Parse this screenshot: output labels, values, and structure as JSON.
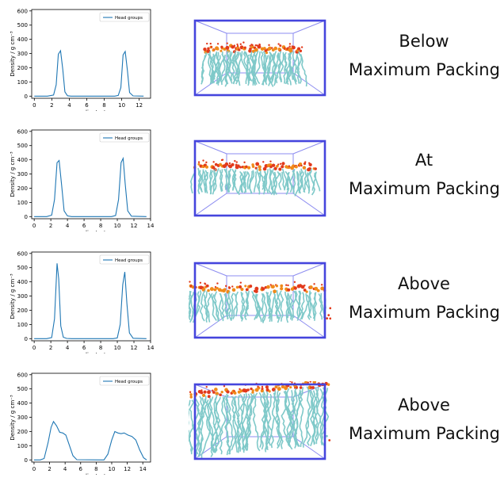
{
  "chart_data": [
    {
      "type": "line",
      "xlabel": "z-coordinate / nm",
      "ylabel": "Density / g cm⁻³",
      "xlim": [
        -0.3,
        13.3
      ],
      "ylim": [
        -15,
        610
      ],
      "xticks": [
        0,
        2,
        4,
        6,
        8,
        10,
        12
      ],
      "yticks": [
        0,
        100,
        200,
        300,
        400,
        500,
        600
      ],
      "legend": "top-right",
      "series": [
        {
          "name": "Head groups",
          "color": "#1f77b4",
          "x": [
            0,
            1.5,
            2.2,
            2.5,
            2.75,
            3.0,
            3.25,
            3.5,
            3.8,
            4.2,
            9.2,
            9.6,
            9.9,
            10.15,
            10.4,
            10.65,
            10.9,
            11.3,
            12.5
          ],
          "y": [
            0,
            0,
            8,
            80,
            295,
            320,
            190,
            30,
            3,
            0,
            0,
            5,
            60,
            290,
            315,
            180,
            25,
            2,
            0
          ]
        }
      ]
    },
    {
      "type": "line",
      "xlabel": "z-coordinate / nm",
      "ylabel": "Density / g cm⁻³",
      "xlim": [
        -0.3,
        14.0
      ],
      "ylim": [
        -15,
        610
      ],
      "xticks": [
        0,
        2,
        4,
        6,
        8,
        10,
        12,
        14
      ],
      "yticks": [
        0,
        100,
        200,
        300,
        400,
        500,
        600
      ],
      "legend": "top-right",
      "series": [
        {
          "name": "Head groups",
          "color": "#1f77b4",
          "x": [
            0,
            1.5,
            2.1,
            2.45,
            2.75,
            3.0,
            3.3,
            3.6,
            4.0,
            4.5,
            9.3,
            9.8,
            10.15,
            10.45,
            10.7,
            10.95,
            11.25,
            11.7,
            13.5
          ],
          "y": [
            0,
            0,
            10,
            120,
            380,
            395,
            220,
            40,
            5,
            0,
            0,
            8,
            120,
            380,
            410,
            230,
            40,
            3,
            0
          ]
        }
      ]
    },
    {
      "type": "line",
      "xlabel": "z-coordinate / nm",
      "ylabel": "Density / g cm⁻³",
      "xlim": [
        -0.3,
        14.0
      ],
      "ylim": [
        -15,
        610
      ],
      "xticks": [
        0,
        2,
        4,
        6,
        8,
        10,
        12,
        14
      ],
      "yticks": [
        0,
        100,
        200,
        300,
        400,
        500,
        600
      ],
      "legend": "top-right",
      "series": [
        {
          "name": "Head groups",
          "color": "#1f77b4",
          "x": [
            0,
            1.5,
            2.1,
            2.45,
            2.75,
            2.95,
            3.2,
            3.5,
            3.9,
            4.5,
            9.5,
            10.0,
            10.35,
            10.65,
            10.9,
            11.15,
            11.45,
            11.9,
            13.5
          ],
          "y": [
            0,
            0,
            8,
            140,
            530,
            420,
            90,
            10,
            2,
            0,
            0,
            5,
            100,
            380,
            470,
            250,
            40,
            3,
            0
          ]
        }
      ]
    },
    {
      "type": "line",
      "xlabel": "z-coordinate / nm",
      "ylabel": "Density / g cm⁻³",
      "xlim": [
        -0.3,
        15.0
      ],
      "ylim": [
        -15,
        610
      ],
      "xticks": [
        0,
        2,
        4,
        6,
        8,
        10,
        12,
        14
      ],
      "yticks": [
        0,
        100,
        200,
        300,
        400,
        500,
        600
      ],
      "legend": "top-right",
      "series": [
        {
          "name": "Head groups",
          "color": "#1f77b4",
          "x": [
            0,
            0.8,
            1.3,
            1.8,
            2.2,
            2.5,
            2.9,
            3.3,
            3.7,
            4.1,
            4.5,
            5.0,
            5.5,
            9.0,
            9.5,
            10.0,
            10.4,
            10.8,
            11.2,
            11.6,
            12.1,
            12.6,
            13.1,
            13.6,
            14.1,
            14.5
          ],
          "y": [
            0,
            0,
            10,
            120,
            230,
            270,
            240,
            195,
            190,
            175,
            110,
            30,
            2,
            0,
            40,
            140,
            200,
            190,
            185,
            190,
            175,
            165,
            140,
            70,
            15,
            0
          ]
        }
      ]
    }
  ],
  "captions": [
    {
      "line1": "Below",
      "line2": "Maximum Packing"
    },
    {
      "line1": "At",
      "line2": "Maximum Packing"
    },
    {
      "line1": "Above",
      "line2": "Maximum Packing"
    },
    {
      "line1": "Above",
      "line2": "Maximum Packing"
    }
  ],
  "colors": {
    "line": "#1f77b4",
    "box_front": "#4545dd",
    "box_back": "#8c8cf0",
    "lipid_tail": "#7fc9c9",
    "head_oxygen": "#e23a1c",
    "head_phosphorus": "#f08a1a"
  }
}
